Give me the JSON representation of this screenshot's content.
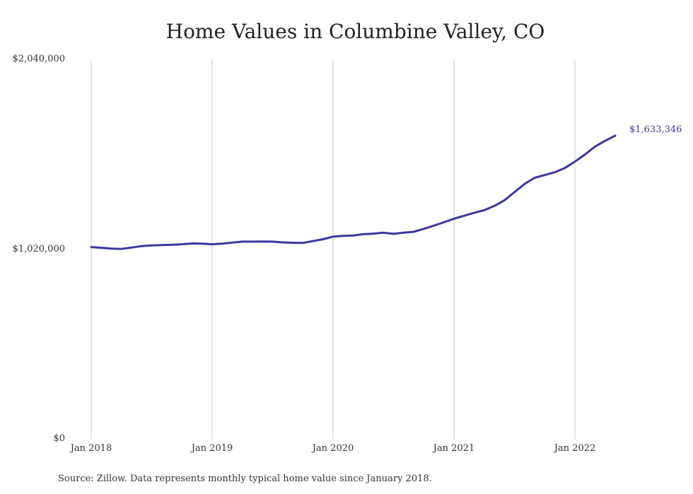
{
  "chart_data": {
    "type": "line",
    "title": "Home Values in Columbine Valley, CO",
    "xlabel": "",
    "ylabel": "",
    "ylim": [
      0,
      2040000
    ],
    "y_ticks": [
      "$0",
      "$1,020,000",
      "$2,040,000"
    ],
    "y_tick_values": [
      0,
      1020000,
      2040000
    ],
    "x_ticks": [
      "Jan 2018",
      "Jan 2019",
      "Jan 2020",
      "Jan 2021",
      "Jan 2022"
    ],
    "grid": "vertical",
    "line_color": "#3b37a0",
    "end_label": "$1,633,346",
    "series": [
      {
        "x": [
          "2018-01",
          "2018-02",
          "2018-03",
          "2018-04",
          "2018-05",
          "2018-06",
          "2018-07",
          "2018-08",
          "2018-09",
          "2018-10",
          "2018-11",
          "2018-12",
          "2019-01",
          "2019-02",
          "2019-03",
          "2019-04",
          "2019-05",
          "2019-06",
          "2019-07",
          "2019-08",
          "2019-09",
          "2019-10",
          "2019-11",
          "2019-12",
          "2020-01",
          "2020-02",
          "2020-03",
          "2020-04",
          "2020-05",
          "2020-06",
          "2020-07",
          "2020-08",
          "2020-09",
          "2020-10",
          "2020-11",
          "2020-12",
          "2021-01",
          "2021-02",
          "2021-03",
          "2021-04",
          "2021-05",
          "2021-06",
          "2021-07",
          "2021-08",
          "2021-09",
          "2021-10",
          "2021-11",
          "2021-12",
          "2022-01",
          "2022-02",
          "2022-03",
          "2022-04",
          "2022-05"
        ],
        "values": [
          1035000,
          1031000,
          1027000,
          1025000,
          1032000,
          1040000,
          1044000,
          1046000,
          1047000,
          1050000,
          1054000,
          1053000,
          1050000,
          1053000,
          1059000,
          1064000,
          1064000,
          1065000,
          1064000,
          1060000,
          1058000,
          1057000,
          1067000,
          1077000,
          1091000,
          1095000,
          1097000,
          1104000,
          1107000,
          1112000,
          1106000,
          1112000,
          1117000,
          1133000,
          1150000,
          1168000,
          1187000,
          1203000,
          1219000,
          1233000,
          1256000,
          1286000,
          1330000,
          1374000,
          1407000,
          1422000,
          1437000,
          1460000,
          1494000,
          1533000,
          1575000,
          1606000,
          1633346
        ]
      }
    ]
  },
  "source": "Source: Zillow. Data represents monthly typical home value since January 2018."
}
